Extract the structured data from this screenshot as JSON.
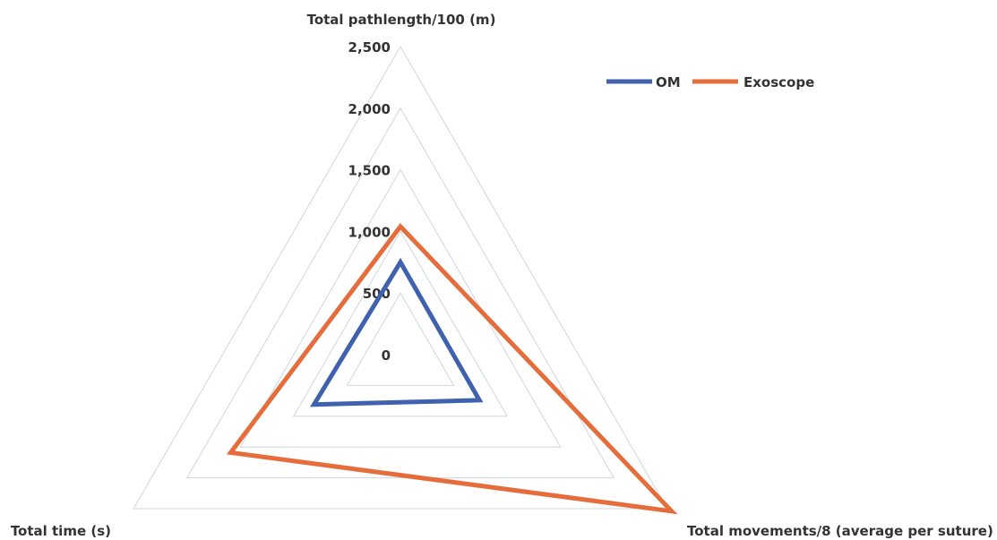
{
  "chart_data": {
    "type": "radar",
    "axes": [
      "Total pathlength/100 (m)",
      "Total movements/8 (average per suture)",
      "Total time (s)"
    ],
    "range": [
      0,
      2500
    ],
    "ticks": [
      "0",
      "500",
      "1,000",
      "1,500",
      "2,000",
      "2,500"
    ],
    "tick_values": [
      0,
      500,
      1000,
      1500,
      2000,
      2500
    ],
    "grid": true,
    "legend_position": "top-right",
    "series": [
      {
        "name": "OM",
        "values": [
          750,
          740,
          810
        ],
        "color": "#4061ad"
      },
      {
        "name": "Exoscope",
        "values": [
          1040,
          2540,
          1590
        ],
        "color": "#e56c3b"
      }
    ]
  }
}
